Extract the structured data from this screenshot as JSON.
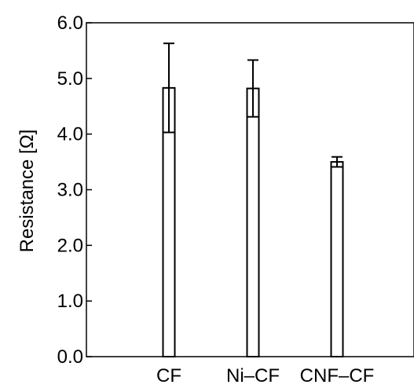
{
  "chart_data": {
    "type": "bar",
    "categories": [
      "CF",
      "Ni–CF",
      "CNF–CF"
    ],
    "values": [
      4.83,
      4.82,
      3.5
    ],
    "error_bars": [
      {
        "upper": 5.63,
        "lower": 4.03
      },
      {
        "upper": 5.33,
        "lower": 4.31
      },
      {
        "upper": 3.59,
        "lower": 3.41
      }
    ],
    "xlabel": "",
    "ylabel": "Resistance [Ω]",
    "ylim": [
      0,
      6.0
    ],
    "yticks": [
      "0.0",
      "1.0",
      "2.0",
      "3.0",
      "4.0",
      "5.0",
      "6.0"
    ],
    "grid": false,
    "bar_fill": "#ffffff",
    "line_color": "#000000"
  }
}
